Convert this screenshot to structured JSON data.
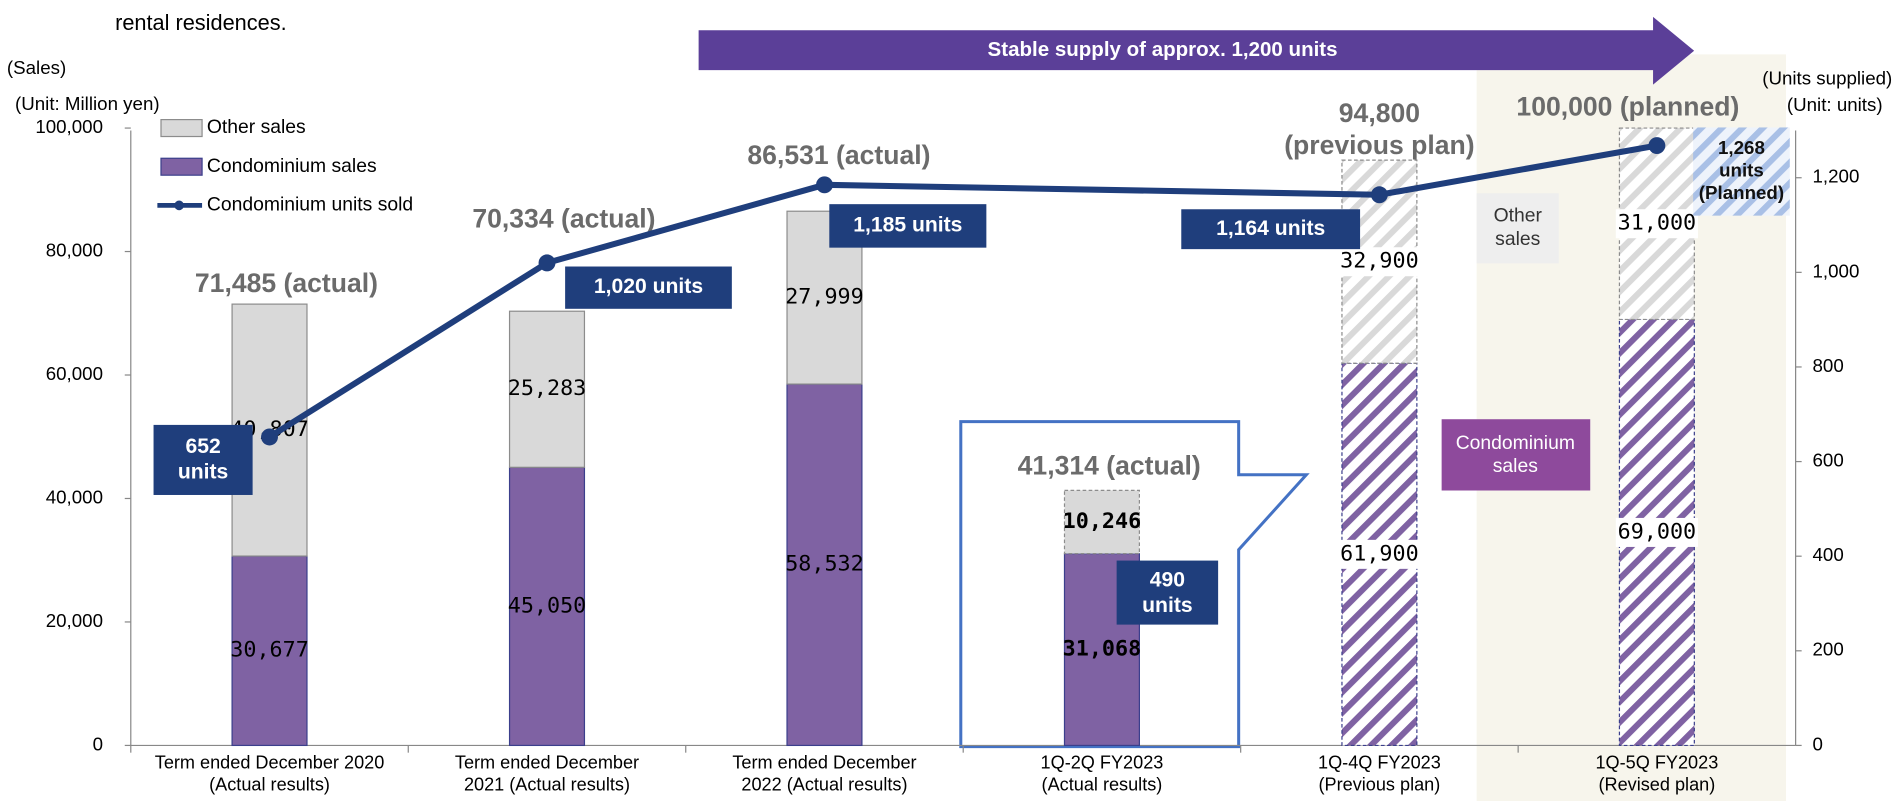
{
  "page_text": "rental residences.",
  "chart_data": {
    "type": "bar",
    "stacked": true,
    "banner": "Stable supply of approx. 1,200 units",
    "y_axis_label": [
      "(Sales)",
      "(Unit: Million yen)"
    ],
    "y2_axis_label": [
      "(Units supplied)",
      "(Unit: units)"
    ],
    "categories": [
      "Term ended December 2020\n(Actual results)",
      "Term ended December\n2021 (Actual results)",
      "Term ended December\n2022 (Actual results)",
      "1Q-2Q FY2023\n(Actual results)",
      "1Q-4Q FY2023\n(Previous plan)",
      "1Q-5Q FY2023\n(Revised plan)"
    ],
    "series": [
      {
        "name": "Condominium sales",
        "color": "#7f62a3",
        "values": [
          30677,
          45050,
          58532,
          31068,
          61900,
          69000
        ],
        "value_labels": [
          "30,677",
          "45,050",
          "58,532",
          "31,068",
          "61,900",
          "69,000"
        ]
      },
      {
        "name": "Other sales",
        "color": "#d9d9d9",
        "values": [
          40807,
          25283,
          27999,
          10246,
          32900,
          31000
        ],
        "value_labels": [
          "40,807",
          "25,283",
          "27,999",
          "10,246",
          "32,900",
          "31,000"
        ]
      },
      {
        "name": "Condominium units sold",
        "type": "line",
        "axis": "y2",
        "color": "#1f3e7c",
        "x": [
          "Term ended December 2020\n(Actual results)",
          "Term ended December\n2021 (Actual results)",
          "Term ended December\n2022 (Actual results)",
          "1Q-4Q FY2023\n(Previous plan)",
          "1Q-5Q FY2023\n(Revised plan)"
        ],
        "values": [
          652,
          1020,
          1185,
          1164,
          1268
        ],
        "value_labels": [
          "652\nunits",
          "1,020 units",
          "1,185 units",
          "1,164 units",
          "1,268\nunits\n(Planned)"
        ]
      }
    ],
    "total_labels": [
      "71,485 (actual)",
      "70,334 (actual)",
      "86,531 (actual)",
      "41,314 (actual)",
      "94,800\n(previous plan)",
      "100,000 (planned)"
    ],
    "unit_annotation": "490\nunits",
    "side_labels": [
      "Other\nsales",
      "Condominium\nsales"
    ],
    "hatched": [
      false,
      false,
      false,
      false,
      true,
      true
    ],
    "ylim": [
      0,
      100000
    ],
    "yticks": [
      0,
      {
        "value": 20000,
        "label": "20,000"
      },
      {
        "value": 40000,
        "label": "40,000"
      },
      {
        "value": 60000,
        "label": "60,000"
      },
      {
        "value": 80000,
        "label": "80,000"
      },
      {
        "value": 100000,
        "label": "100,000"
      }
    ],
    "y2lim": [
      0,
      1305
    ],
    "y2ticks": [
      0,
      200,
      400,
      600,
      800,
      {
        "value": 1000,
        "label": "1,000"
      },
      {
        "value": 1200,
        "label": "1,200"
      }
    ],
    "legend": "top-left"
  }
}
